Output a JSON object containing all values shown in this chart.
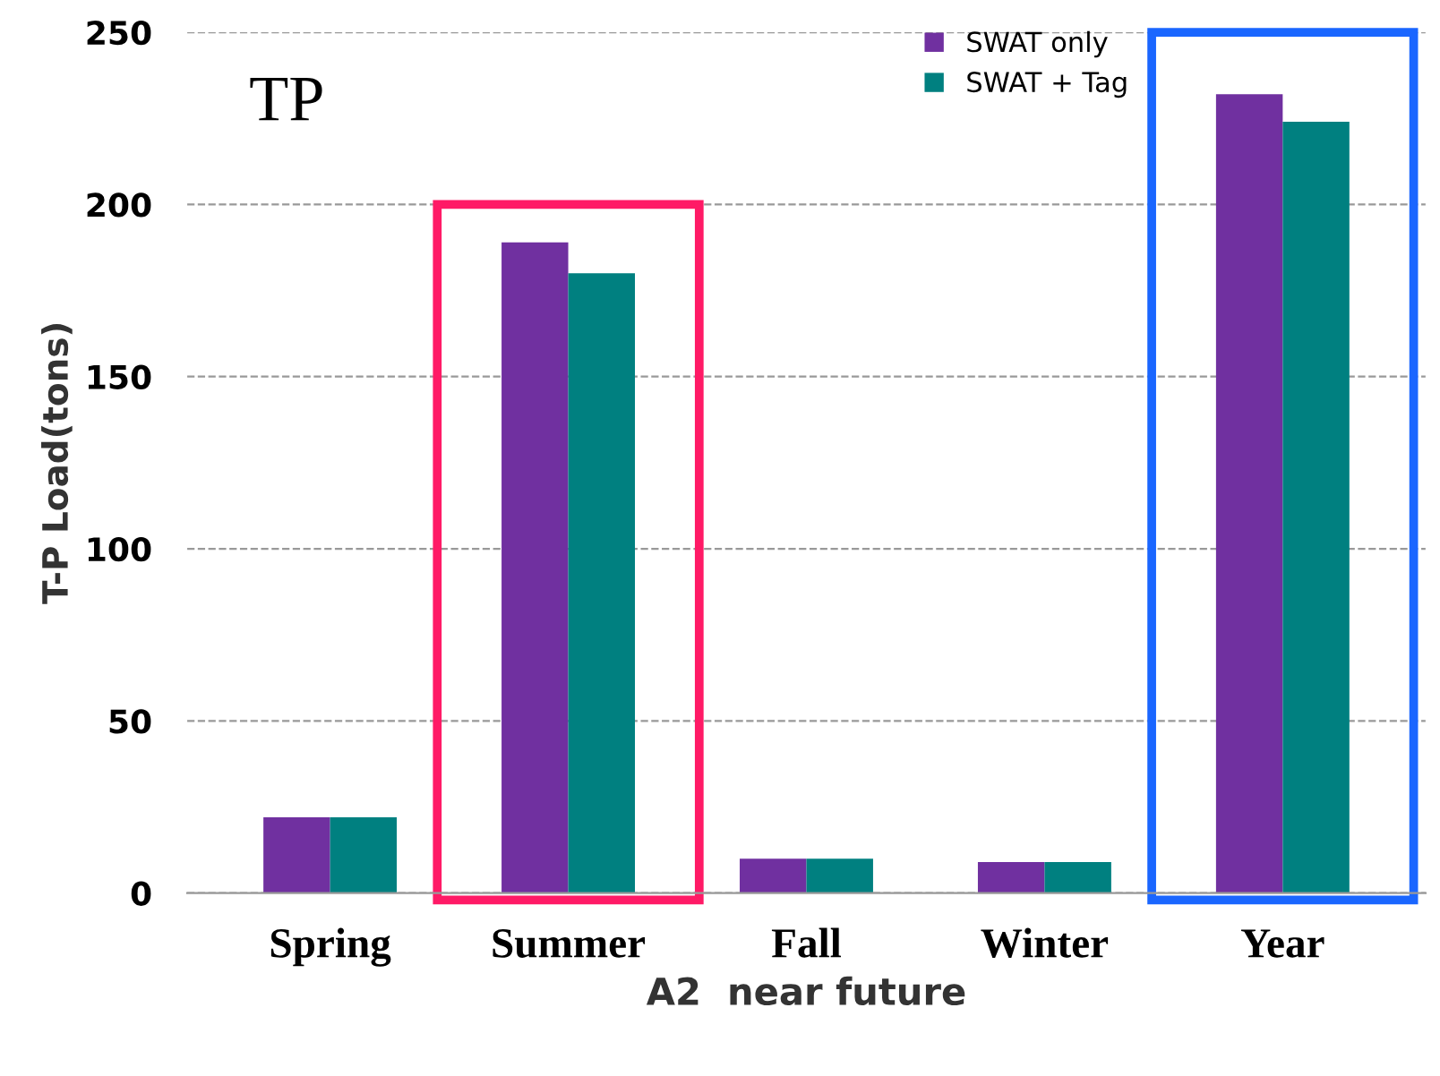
{
  "chart_data": {
    "type": "bar",
    "annotations": [
      "TP"
    ],
    "xlabel": "A2  near future",
    "ylabel": "T-P Load(tons)",
    "categories": [
      "Spring",
      "Summer",
      "Fall",
      "Winter",
      "Year"
    ],
    "series": [
      {
        "name": "SWAT only",
        "color": "#7030a0",
        "values": [
          22,
          189,
          10,
          9,
          232
        ]
      },
      {
        "name": "SWAT + Tag",
        "color": "#008080",
        "values": [
          22,
          180,
          10,
          9,
          224
        ]
      }
    ],
    "ylim": [
      0,
      250
    ],
    "yticks": [
      0,
      50,
      100,
      150,
      200,
      250
    ],
    "grid": "y",
    "legend": "top right"
  }
}
